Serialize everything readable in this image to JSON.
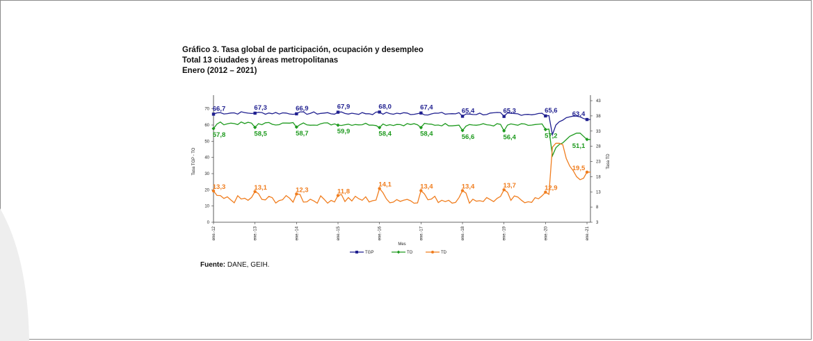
{
  "figure": {
    "title_line1": "Gráfico 3. Tasa global de participación, ocupación y desempleo",
    "title_line2": "Total 13 ciudades y áreas metropolitanas",
    "title_line3": "Enero (2012 – 2021)",
    "source_label": "Fuente:",
    "source_text": " DANE, GEIH."
  },
  "chart_data": {
    "type": "line",
    "xlabel": "Mes",
    "ylabel_left": "Tasa TGP - TO",
    "ylabel_right": "Tasa TD",
    "ylim_left": [
      0,
      75
    ],
    "ylim_right": [
      3,
      43
    ],
    "yticks_left": [
      0,
      10,
      20,
      30,
      40,
      50,
      60,
      70
    ],
    "yticks_right": [
      3,
      8,
      13,
      18,
      23,
      28,
      33,
      38,
      43
    ],
    "x_tick_labels": [
      "ene.-12",
      "ene.-13",
      "ene.-14",
      "ene.-15",
      "ene.-16",
      "ene.-17",
      "ene.-18",
      "ene.-19",
      "ene.-20",
      "ene.-21"
    ],
    "series": [
      {
        "name": "TGP",
        "axis": "left",
        "color": "#1f1f8f",
        "january_values": [
          66.7,
          67.3,
          66.9,
          67.9,
          68.0,
          67.4,
          65.4,
          65.3,
          65.6,
          63.4
        ],
        "covid_2020": [
          54,
          60,
          62,
          63,
          64.5,
          65,
          65.5,
          65.5,
          65,
          64,
          63.4
        ],
        "typical_level": 67.5
      },
      {
        "name": "TO",
        "axis": "left",
        "color": "#1e9a1e",
        "january_values": [
          57.8,
          58.5,
          58.7,
          59.9,
          58.4,
          58.4,
          56.6,
          56.4,
          57.2,
          51.1
        ],
        "covid_2020": [
          41,
          46,
          48,
          49,
          51,
          53,
          54,
          55,
          55,
          53,
          51.1
        ],
        "typical_level": 61
      },
      {
        "name": "TD",
        "axis": "right",
        "color": "#f07d1e",
        "january_values": [
          13.3,
          13.1,
          12.3,
          11.8,
          14.1,
          13.4,
          13.4,
          13.7,
          12.9,
          19.5
        ],
        "covid_2020": [
          27.7,
          29,
          29,
          28.5,
          24,
          21.5,
          20,
          18,
          17,
          17.5,
          19.5
        ],
        "typical_level": 10.5
      }
    ],
    "legend_position": "bottom"
  }
}
